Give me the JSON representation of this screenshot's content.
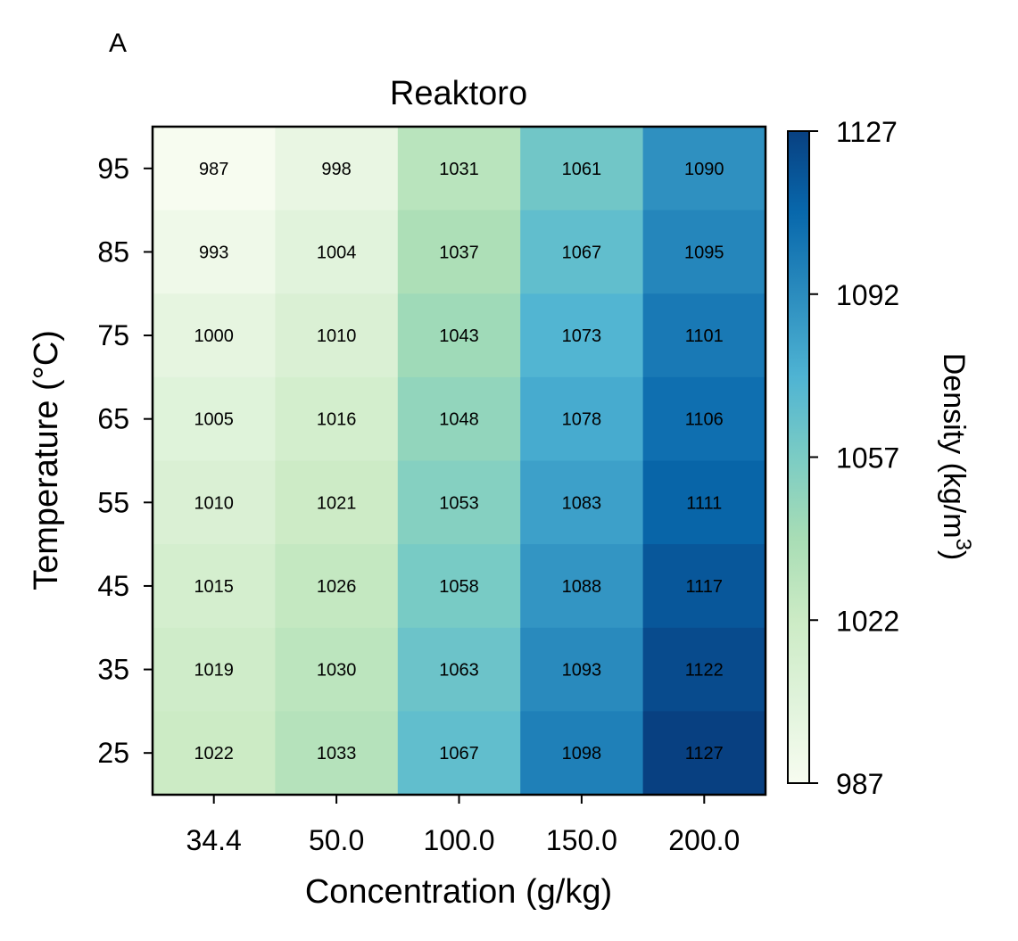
{
  "chart_data": {
    "type": "heatmap",
    "panel_label": "A",
    "title": "Reaktoro",
    "xlabel": "Concentration (g/kg)",
    "ylabel": "Temperature (°C)",
    "x_categories": [
      "34.4",
      "50.0",
      "100.0",
      "150.0",
      "200.0"
    ],
    "y_categories": [
      "95",
      "85",
      "75",
      "65",
      "55",
      "45",
      "35",
      "25"
    ],
    "values": [
      [
        987,
        998,
        1031,
        1061,
        1090
      ],
      [
        993,
        1004,
        1037,
        1067,
        1095
      ],
      [
        1000,
        1010,
        1043,
        1073,
        1101
      ],
      [
        1005,
        1016,
        1048,
        1078,
        1106
      ],
      [
        1010,
        1021,
        1053,
        1083,
        1111
      ],
      [
        1015,
        1026,
        1058,
        1088,
        1117
      ],
      [
        1019,
        1030,
        1063,
        1093,
        1122
      ],
      [
        1022,
        1033,
        1067,
        1098,
        1127
      ]
    ],
    "colorbar": {
      "label": "Density (kg/m",
      "label_superscript": "3",
      "label_close": ")",
      "min": 987,
      "max": 1127,
      "ticks": [
        1127,
        1092,
        1057,
        1022,
        987
      ],
      "colormap": "GnBu",
      "colors": [
        "#f7fcf0",
        "#e0f3db",
        "#ccebc5",
        "#a8ddb5",
        "#7bccc4",
        "#4eb3d3",
        "#2b8cbe",
        "#0868ac",
        "#084081"
      ]
    }
  }
}
